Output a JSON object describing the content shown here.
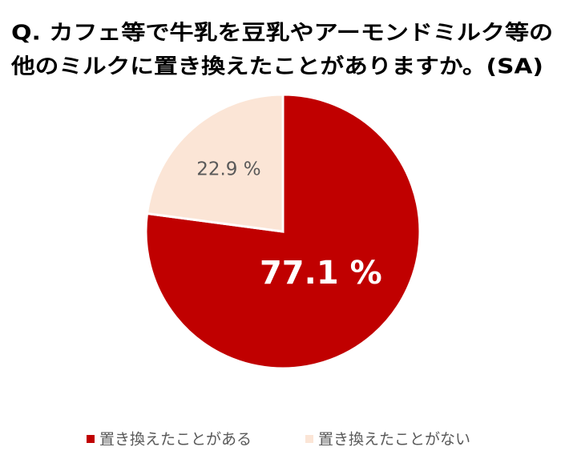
{
  "chart_data": {
    "type": "pie",
    "title": [
      "Q. カフェ等で牛乳を豆乳やアーモンドミルク等の",
      "他のミルクに置き換えたことがありますか。(SA)"
    ],
    "categories": [
      "置き換えたことがある",
      "置き換えたことがない"
    ],
    "values": [
      77.1,
      22.9
    ],
    "value_labels": [
      "77.1 %",
      "22.9 %"
    ],
    "colors": [
      "#c00000",
      "#fbe5d6"
    ],
    "legend": "bottom"
  }
}
